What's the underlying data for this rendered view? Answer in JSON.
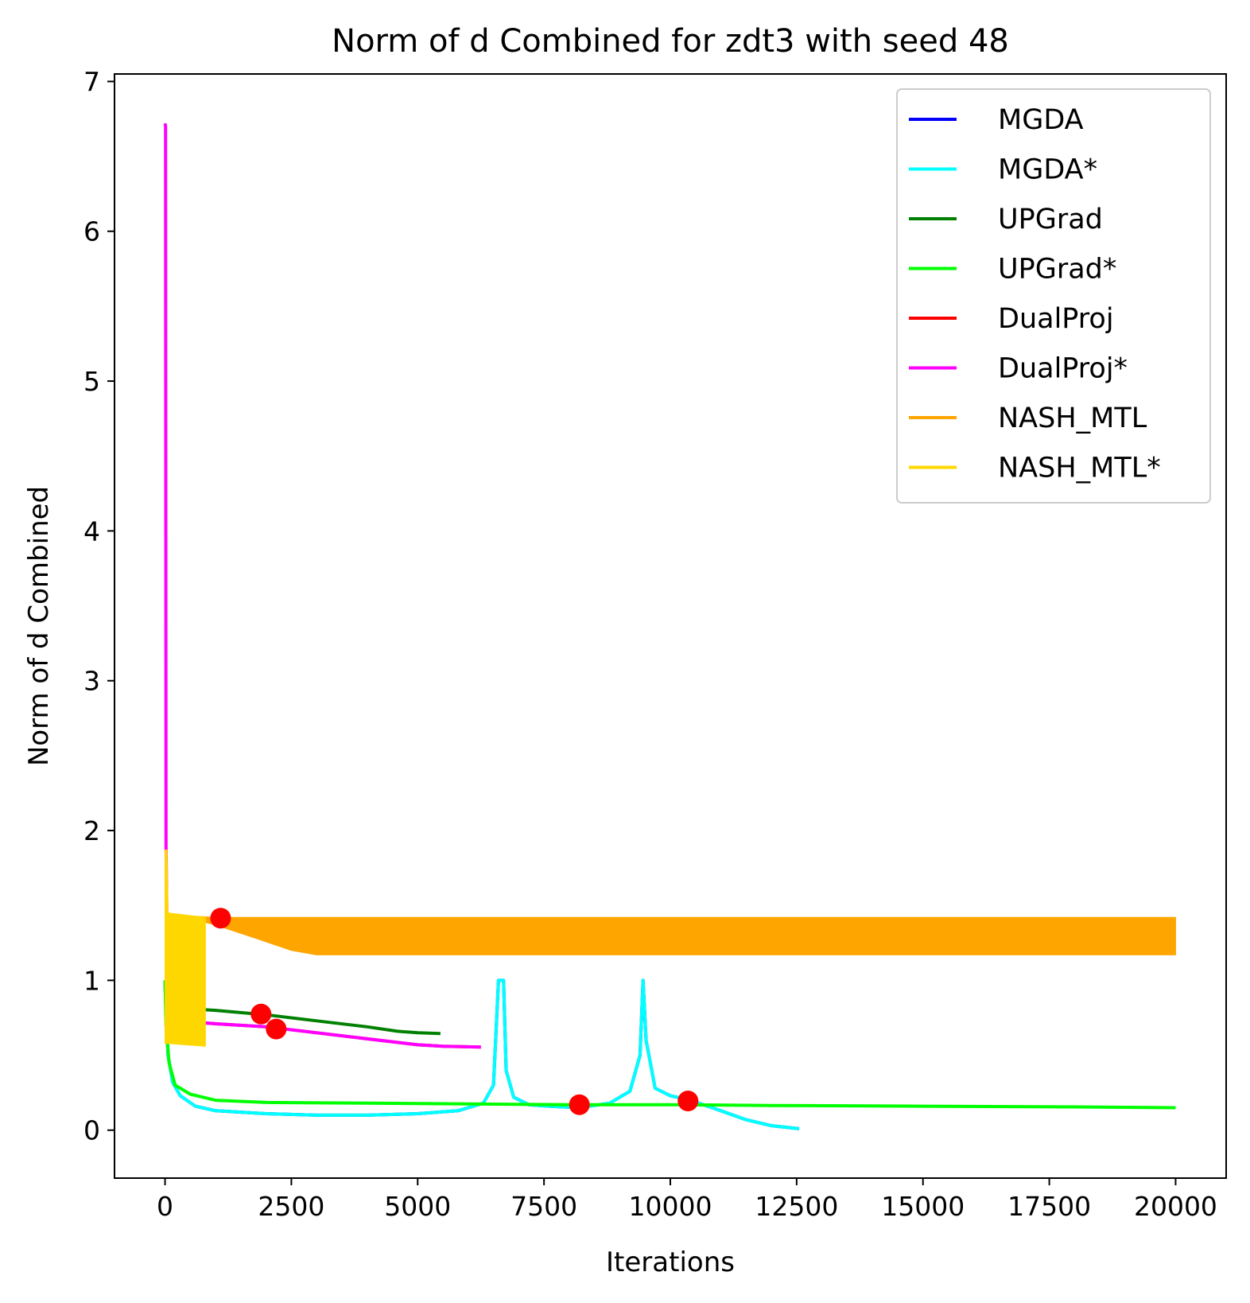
{
  "chart_data": {
    "type": "line",
    "title": "Norm of d Combined for zdt3 with seed 48",
    "xlabel": "Iterations",
    "ylabel": "Norm of d Combined",
    "xlim": [
      -1000,
      21000
    ],
    "ylim": [
      -0.32,
      7.05
    ],
    "xticks": [
      0,
      2500,
      5000,
      7500,
      10000,
      12500,
      15000,
      17500,
      20000
    ],
    "yticks": [
      0,
      1,
      2,
      3,
      4,
      5,
      6,
      7
    ],
    "grid": false,
    "legend_position": "top-right",
    "series": [
      {
        "name": "MGDA",
        "color": "#0000ff",
        "points": [
          [
            0,
            1.0
          ],
          [
            20,
            0.8
          ],
          [
            60,
            0.5
          ],
          [
            150,
            0.32
          ],
          [
            300,
            0.23
          ],
          [
            600,
            0.16
          ],
          [
            1000,
            0.13
          ],
          [
            2000,
            0.11
          ],
          [
            3000,
            0.1
          ],
          [
            4000,
            0.1
          ],
          [
            5000,
            0.11
          ],
          [
            5800,
            0.13
          ],
          [
            6300,
            0.18
          ],
          [
            6500,
            0.3
          ],
          [
            6600,
            1.0
          ],
          [
            6700,
            1.0
          ],
          [
            6750,
            0.4
          ],
          [
            6900,
            0.22
          ],
          [
            7200,
            0.17
          ],
          [
            7600,
            0.16
          ],
          [
            8200,
            0.15
          ],
          [
            8800,
            0.18
          ],
          [
            9200,
            0.26
          ],
          [
            9400,
            0.5
          ],
          [
            9460,
            1.0
          ],
          [
            9520,
            0.6
          ],
          [
            9700,
            0.28
          ],
          [
            10000,
            0.23
          ],
          [
            10400,
            0.2
          ],
          [
            11000,
            0.13
          ],
          [
            11500,
            0.07
          ],
          [
            12000,
            0.03
          ],
          [
            12550,
            0.01
          ]
        ]
      },
      {
        "name": "MGDA*",
        "color": "#00ffff",
        "points": [
          [
            0,
            1.0
          ],
          [
            20,
            0.8
          ],
          [
            60,
            0.5
          ],
          [
            150,
            0.32
          ],
          [
            300,
            0.23
          ],
          [
            600,
            0.16
          ],
          [
            1000,
            0.13
          ],
          [
            2000,
            0.11
          ],
          [
            3000,
            0.1
          ],
          [
            4000,
            0.1
          ],
          [
            5000,
            0.11
          ],
          [
            5800,
            0.13
          ],
          [
            6300,
            0.18
          ],
          [
            6500,
            0.3
          ],
          [
            6600,
            1.0
          ],
          [
            6700,
            1.0
          ],
          [
            6750,
            0.4
          ],
          [
            6900,
            0.22
          ],
          [
            7200,
            0.17
          ],
          [
            7600,
            0.16
          ],
          [
            8200,
            0.15
          ],
          [
            8800,
            0.18
          ],
          [
            9200,
            0.26
          ],
          [
            9400,
            0.5
          ],
          [
            9460,
            1.0
          ],
          [
            9520,
            0.6
          ],
          [
            9700,
            0.28
          ],
          [
            10000,
            0.23
          ],
          [
            10400,
            0.2
          ],
          [
            11000,
            0.13
          ],
          [
            11500,
            0.07
          ],
          [
            12000,
            0.03
          ],
          [
            12550,
            0.01
          ]
        ]
      },
      {
        "name": "UPGrad",
        "color": "#008000",
        "points": [
          [
            0,
            1.0
          ],
          [
            100,
            0.82
          ],
          [
            500,
            0.81
          ],
          [
            1000,
            0.8
          ],
          [
            2000,
            0.77
          ],
          [
            3000,
            0.73
          ],
          [
            4000,
            0.69
          ],
          [
            4600,
            0.66
          ],
          [
            5000,
            0.65
          ],
          [
            5450,
            0.645
          ]
        ]
      },
      {
        "name": "UPGrad*",
        "color": "#00ff00",
        "points": [
          [
            0,
            1.0
          ],
          [
            20,
            0.7
          ],
          [
            80,
            0.45
          ],
          [
            200,
            0.3
          ],
          [
            500,
            0.24
          ],
          [
            1000,
            0.2
          ],
          [
            2000,
            0.185
          ],
          [
            4000,
            0.18
          ],
          [
            6000,
            0.175
          ],
          [
            8000,
            0.17
          ],
          [
            10000,
            0.17
          ],
          [
            12000,
            0.165
          ],
          [
            15000,
            0.16
          ],
          [
            18000,
            0.155
          ],
          [
            20000,
            0.15
          ]
        ]
      },
      {
        "name": "DualProj",
        "color": "#ff0000",
        "points": [
          [
            0,
            1.0
          ],
          [
            60,
            0.75
          ],
          [
            300,
            0.73
          ],
          [
            1000,
            0.71
          ],
          [
            2000,
            0.69
          ],
          [
            3000,
            0.65
          ],
          [
            4000,
            0.61
          ],
          [
            5000,
            0.57
          ],
          [
            5500,
            0.56
          ],
          [
            6250,
            0.555
          ]
        ]
      },
      {
        "name": "DualProj*",
        "color": "#ff00ff",
        "points": [
          [
            0,
            6.72
          ],
          [
            10,
            6.7
          ],
          [
            20,
            1.9
          ],
          [
            60,
            0.75
          ],
          [
            300,
            0.73
          ],
          [
            1000,
            0.71
          ],
          [
            2000,
            0.69
          ],
          [
            3000,
            0.65
          ],
          [
            4000,
            0.61
          ],
          [
            5000,
            0.57
          ],
          [
            5500,
            0.56
          ],
          [
            6250,
            0.555
          ]
        ]
      },
      {
        "name": "NASH_MTL",
        "color": "#ffa500",
        "band": true,
        "upper": [
          [
            0,
            1.45
          ],
          [
            500,
            1.43
          ],
          [
            1000,
            1.42
          ],
          [
            20000,
            1.42
          ]
        ],
        "lower": [
          [
            0,
            1.45
          ],
          [
            1000,
            1.37
          ],
          [
            1800,
            1.28
          ],
          [
            2500,
            1.2
          ],
          [
            3000,
            1.17
          ],
          [
            20000,
            1.17
          ]
        ]
      },
      {
        "name": "NASH_MTL*",
        "color": "#ffd700",
        "band": true,
        "upper": [
          [
            0,
            1.87
          ],
          [
            40,
            1.87
          ],
          [
            60,
            1.45
          ],
          [
            800,
            1.42
          ]
        ],
        "lower": [
          [
            0,
            0.58
          ],
          [
            800,
            0.56
          ]
        ]
      }
    ],
    "markers": {
      "color": "#ff0000",
      "points": [
        [
          1100,
          1.415
        ],
        [
          1900,
          0.775
        ],
        [
          2200,
          0.675
        ],
        [
          8200,
          0.17
        ],
        [
          10350,
          0.195
        ]
      ]
    }
  }
}
